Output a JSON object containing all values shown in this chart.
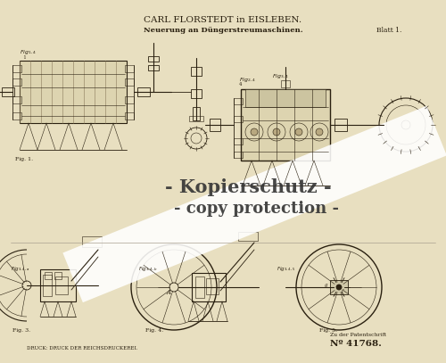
{
  "bg_color": "#e8dfc0",
  "title_line1": "CARL FLORSTEDT in EISLEBEN.",
  "title_line2": "Neuerung an Düngerstreumaschinen.",
  "blatt": "Blatt 1.",
  "patent_label": "Zu der Patentschrift",
  "patent_number": "Nº 41768.",
  "bottom_left_text": "DRUCK: DRUCK DER REICHSDRUCKEREI.",
  "watermark_line1": "- Kopierschutz -",
  "watermark_line2": "- copy protection -",
  "drawing_color": "#2a2010",
  "text_color": "#2a2010",
  "light_color": "#c8bc9a"
}
